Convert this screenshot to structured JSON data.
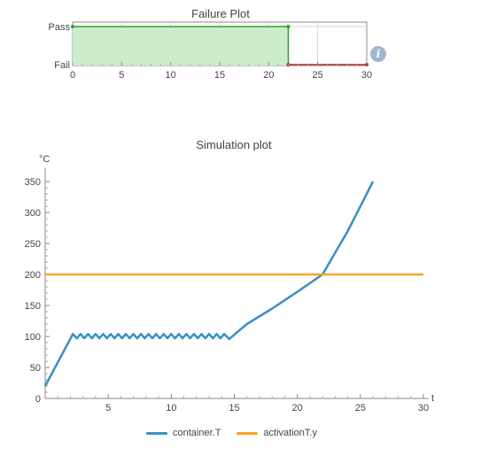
{
  "chart_data": [
    {
      "type": "area",
      "title": "Failure Plot",
      "y_categories": [
        "Fail",
        "Pass"
      ],
      "xlim": [
        0,
        30
      ],
      "x_ticks": [
        0,
        5,
        10,
        15,
        20,
        25,
        30
      ],
      "grid": true,
      "series": [
        {
          "status": "Pass",
          "x": [
            0,
            22
          ],
          "color": "#2ca02c",
          "fill": "#cceccc"
        },
        {
          "status": "Fail",
          "x": [
            22,
            30
          ],
          "color": "#cc2222"
        }
      ]
    },
    {
      "type": "line",
      "title": "Simulation plot",
      "ylabel": "°C",
      "xlabel": "t",
      "xlim": [
        0,
        30
      ],
      "ylim": [
        0,
        350
      ],
      "x_ticks": [
        5,
        10,
        15,
        20,
        25,
        30
      ],
      "y_ticks": [
        0,
        50,
        100,
        150,
        200,
        250,
        300,
        350
      ],
      "legend_position": "bottom",
      "series": [
        {
          "name": "container.T",
          "color": "#3b8fc4",
          "points": [
            [
              0,
              20
            ],
            [
              2.2,
              104
            ],
            [
              2.5,
              97
            ],
            [
              2.8,
              104
            ],
            [
              3.1,
              97
            ],
            [
              3.4,
              104
            ],
            [
              3.7,
              97
            ],
            [
              4.0,
              104
            ],
            [
              4.3,
              97
            ],
            [
              4.6,
              104
            ],
            [
              4.9,
              97
            ],
            [
              5.2,
              104
            ],
            [
              5.5,
              97
            ],
            [
              5.8,
              104
            ],
            [
              6.1,
              97
            ],
            [
              6.4,
              104
            ],
            [
              6.7,
              97
            ],
            [
              7.0,
              104
            ],
            [
              7.3,
              97
            ],
            [
              7.6,
              104
            ],
            [
              7.9,
              97
            ],
            [
              8.2,
              104
            ],
            [
              8.5,
              97
            ],
            [
              8.8,
              104
            ],
            [
              9.1,
              97
            ],
            [
              9.4,
              104
            ],
            [
              9.7,
              97
            ],
            [
              10.0,
              104
            ],
            [
              10.3,
              97
            ],
            [
              10.6,
              104
            ],
            [
              10.9,
              97
            ],
            [
              11.2,
              104
            ],
            [
              11.5,
              97
            ],
            [
              11.8,
              104
            ],
            [
              12.1,
              97
            ],
            [
              12.4,
              104
            ],
            [
              12.7,
              97
            ],
            [
              13.0,
              104
            ],
            [
              13.3,
              97
            ],
            [
              13.6,
              104
            ],
            [
              13.9,
              97
            ],
            [
              14.2,
              104
            ],
            [
              14.6,
              96
            ],
            [
              16,
              120
            ],
            [
              18,
              145
            ],
            [
              20,
              172
            ],
            [
              22,
              200
            ],
            [
              24,
              270
            ],
            [
              26,
              350
            ]
          ]
        },
        {
          "name": "activationT.y",
          "color": "#f5a623",
          "points": [
            [
              0,
              200
            ],
            [
              30,
              200
            ]
          ]
        }
      ]
    }
  ]
}
